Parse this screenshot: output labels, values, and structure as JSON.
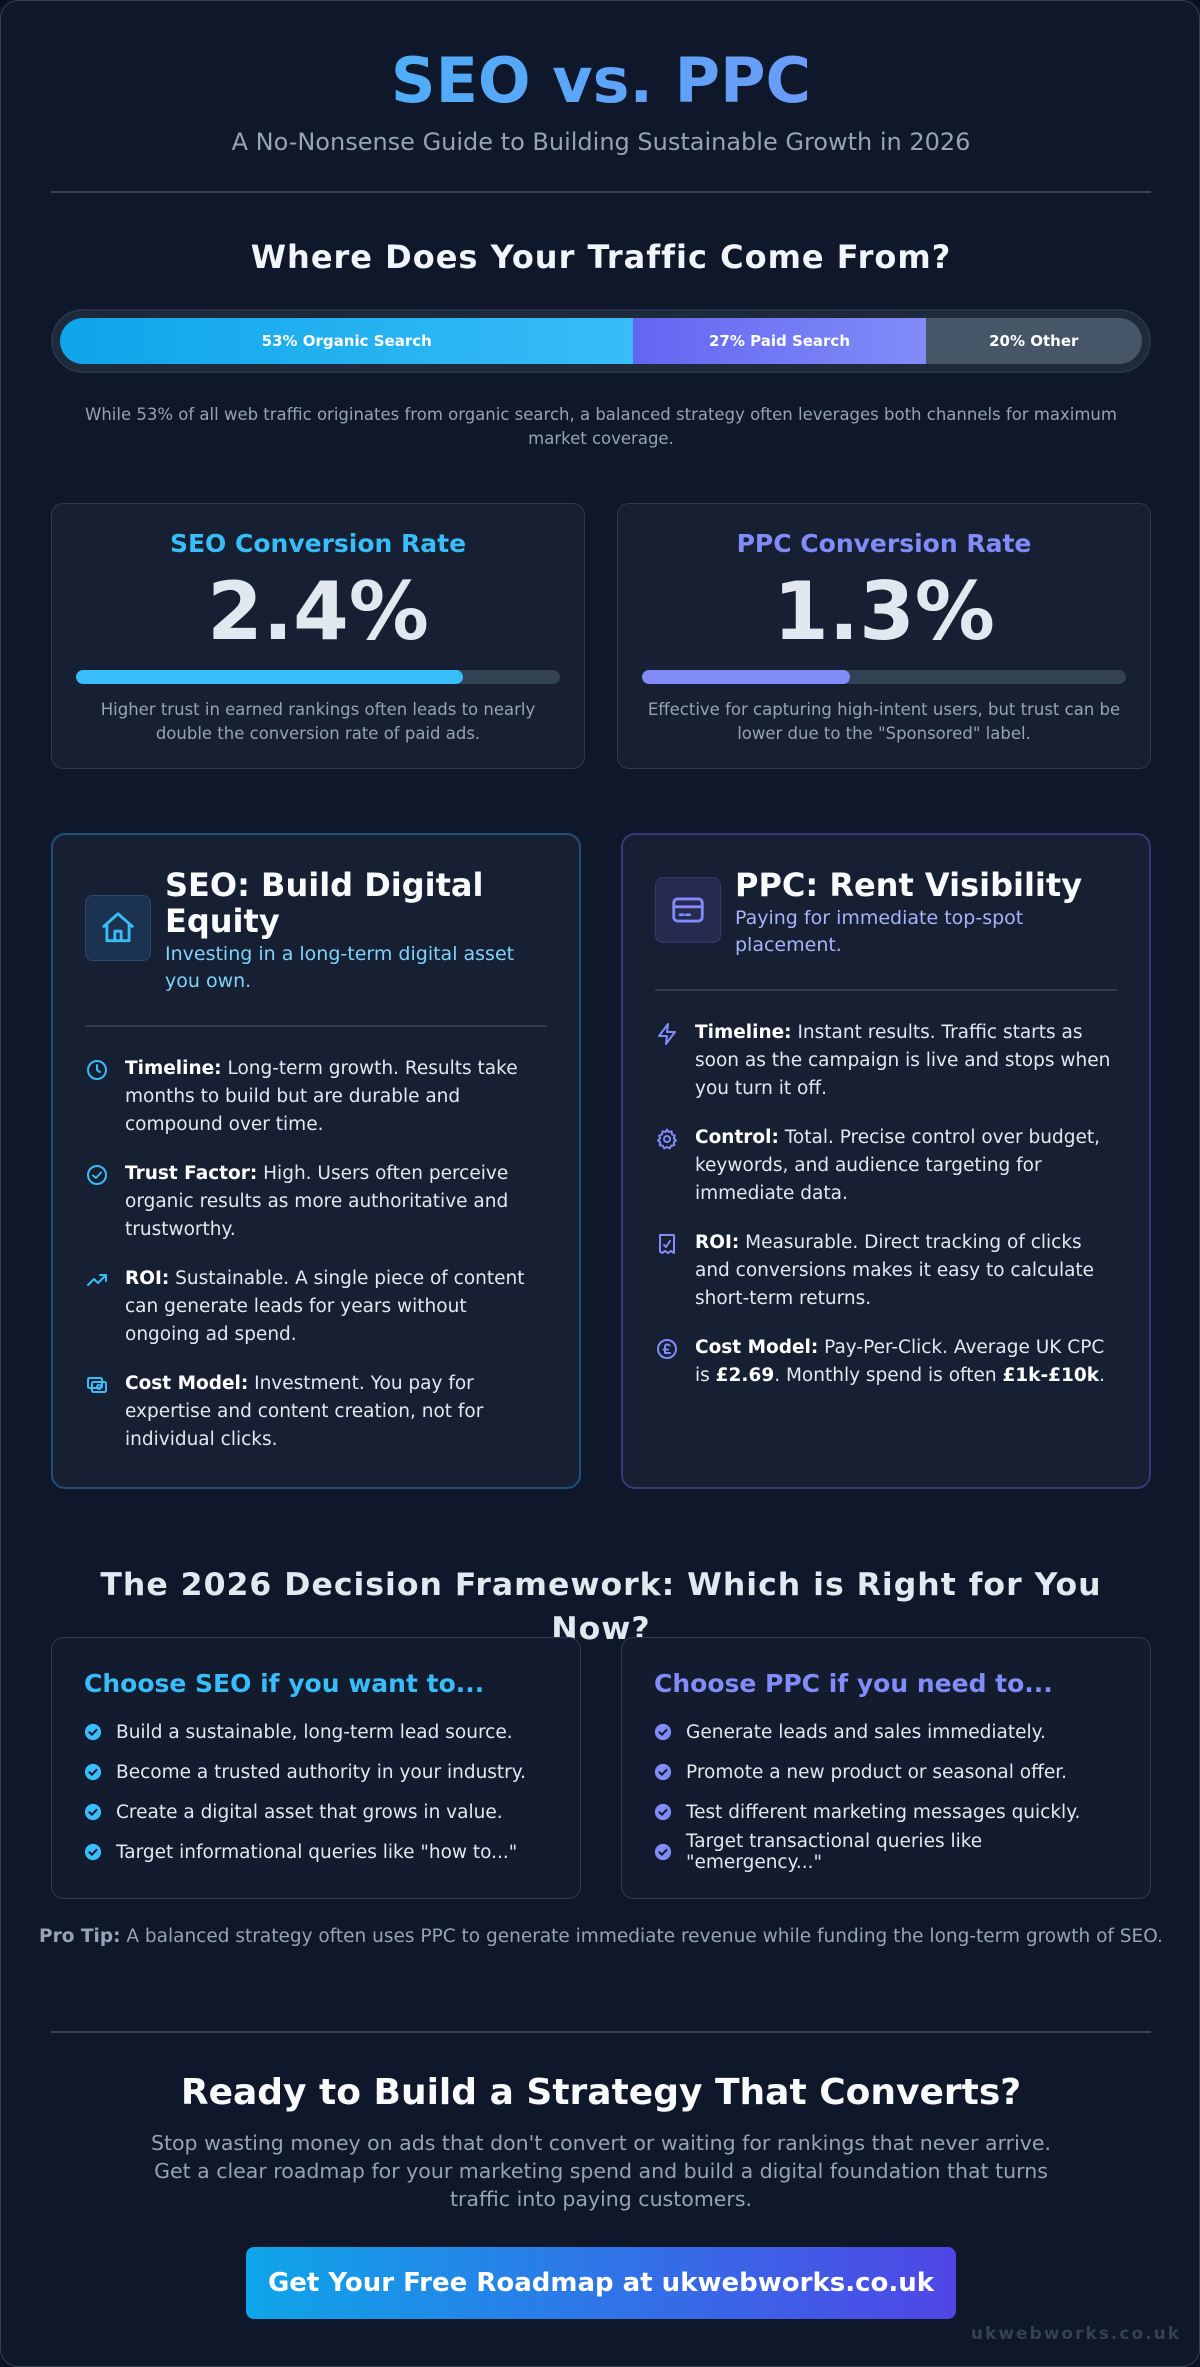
{
  "header": {
    "title": "SEO vs. PPC",
    "subtitle": "A No-Nonsense Guide to Building Sustainable Growth in 2026"
  },
  "traffic": {
    "heading": "Where Does Your Traffic Come From?",
    "segments": [
      {
        "label": "53% Organic Search",
        "value": 53
      },
      {
        "label": "27% Paid Search",
        "value": 27
      },
      {
        "label": "20% Other",
        "value": 20
      }
    ],
    "note": "While 53% of all web traffic originates from organic search, a balanced strategy often leverages both channels for maximum market coverage."
  },
  "stats": {
    "seo": {
      "label": "SEO Conversion Rate",
      "value": "2.4%",
      "fill_percent": 80,
      "description": "Higher trust in earned rankings often leads to nearly double the conversion rate of paid ads."
    },
    "ppc": {
      "label": "PPC Conversion Rate",
      "value": "1.3%",
      "fill_percent": 43,
      "description": "Effective for capturing high-intent users, but trust can be lower due to the \"Sponsored\" label."
    }
  },
  "seo_card": {
    "icon": "home-icon",
    "title": "SEO: Build Digital Equity",
    "subtitle": "Investing in a long-term digital asset you own.",
    "items": [
      {
        "icon": "clock-icon",
        "label": "Timeline:",
        "text": " Long-term growth. Results take months to build but are durable and compound over time."
      },
      {
        "icon": "check-badge-icon",
        "label": "Trust Factor:",
        "text": " High. Users often perceive organic results as more authoritative and trustworthy."
      },
      {
        "icon": "trending-up-icon",
        "label": "ROI:",
        "text": " Sustainable. A single piece of content can generate leads for years without ongoing ad spend."
      },
      {
        "icon": "investment-icon",
        "label": "Cost Model:",
        "text": " Investment. You pay for expertise and content creation, not for individual clicks."
      }
    ]
  },
  "ppc_card": {
    "icon": "credit-card-icon",
    "title": "PPC: Rent Visibility",
    "subtitle": "Paying for immediate top-spot placement.",
    "items": [
      {
        "icon": "lightning-icon",
        "label": "Timeline:",
        "text": " Instant results. Traffic starts as soon as the campaign is live and stops when you turn it off."
      },
      {
        "icon": "gear-icon",
        "label": "Control:",
        "text": " Total. Precise control over budget, keywords, and audience targeting for immediate data."
      },
      {
        "icon": "receipt-icon",
        "label": "ROI:",
        "text": " Measurable. Direct tracking of clicks and conversions makes it easy to calculate short-term returns."
      },
      {
        "icon": "coin-icon",
        "label": "Cost Model:",
        "text_before": " Pay-Per-Click. Average UK CPC is ",
        "cpc": "£2.69",
        "text_mid": ". Monthly spend is often ",
        "spend": "£1k-£10k",
        "text_after": "."
      }
    ]
  },
  "framework": {
    "heading": "The 2026 Decision Framework: Which is Right for You Now?",
    "seo": {
      "title": "Choose SEO if you want to...",
      "items": [
        "Build a sustainable, long-term lead source.",
        "Become a trusted authority in your industry.",
        "Create a digital asset that grows in value.",
        "Target informational queries like \"how to...\""
      ]
    },
    "ppc": {
      "title": "Choose PPC if you need to...",
      "items": [
        "Generate leads and sales immediately.",
        "Promote a new product or seasonal offer.",
        "Test different marketing messages quickly.",
        "Target transactional queries like \"emergency...\""
      ]
    },
    "pro_tip_label": "Pro Tip:",
    "pro_tip_text": " A balanced strategy often uses PPC to generate immediate revenue while funding the long-term growth of SEO."
  },
  "cta": {
    "heading": "Ready to Build a Strategy That Converts?",
    "body": "Stop wasting money on ads that don't convert or waiting for rankings that never arrive. Get a clear roadmap for your marketing spend and build a digital foundation that turns traffic into paying customers.",
    "button": "Get Your Free Roadmap at ukwebworks.co.uk"
  },
  "watermark": "ukwebworks.co.uk",
  "colors": {
    "seo_accent": "#38bdf8",
    "ppc_accent": "#818cf8",
    "seo_subtitle": "#7dd3fc",
    "ppc_subtitle": "#a5b4fc",
    "background": "#0f172a"
  }
}
